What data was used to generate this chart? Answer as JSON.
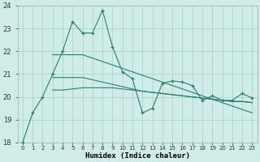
{
  "title": "",
  "xlabel": "Humidex (Indice chaleur)",
  "x_values": [
    0,
    1,
    2,
    3,
    4,
    5,
    6,
    7,
    8,
    9,
    10,
    11,
    12,
    13,
    14,
    15,
    16,
    17,
    18,
    19,
    20,
    21,
    22,
    23
  ],
  "main_line": [
    18.0,
    19.3,
    20.0,
    21.0,
    22.0,
    23.3,
    22.8,
    22.8,
    23.8,
    22.2,
    21.1,
    20.8,
    19.3,
    19.5,
    20.6,
    20.7,
    20.65,
    20.5,
    19.85,
    20.05,
    19.85,
    19.85,
    20.15,
    19.95
  ],
  "upper_line": [
    null,
    null,
    null,
    21.85,
    21.85,
    21.85,
    21.85,
    21.7,
    21.55,
    21.4,
    21.25,
    21.1,
    20.95,
    20.8,
    20.65,
    20.5,
    20.35,
    20.2,
    20.05,
    19.9,
    19.75,
    19.6,
    19.45,
    19.3
  ],
  "middle_line": [
    null,
    null,
    null,
    20.85,
    20.85,
    20.85,
    20.85,
    20.75,
    20.65,
    20.55,
    20.45,
    20.35,
    20.25,
    20.2,
    20.15,
    20.1,
    20.05,
    20.0,
    19.95,
    19.9,
    19.85,
    19.8,
    19.8,
    19.75
  ],
  "lower_line": [
    null,
    null,
    null,
    20.3,
    20.3,
    20.35,
    20.4,
    20.4,
    20.4,
    20.4,
    20.35,
    20.3,
    20.25,
    20.2,
    20.15,
    20.1,
    20.05,
    20.0,
    19.95,
    19.9,
    19.85,
    19.8,
    19.8,
    19.75
  ],
  "line_color": "#2e7d6e",
  "bg_color": "#d0ece8",
  "grid_color": "#b0d8d2",
  "ylim": [
    18,
    24
  ],
  "yticks": [
    18,
    19,
    20,
    21,
    22,
    23,
    24
  ],
  "xlabel_fontsize": 6.5
}
